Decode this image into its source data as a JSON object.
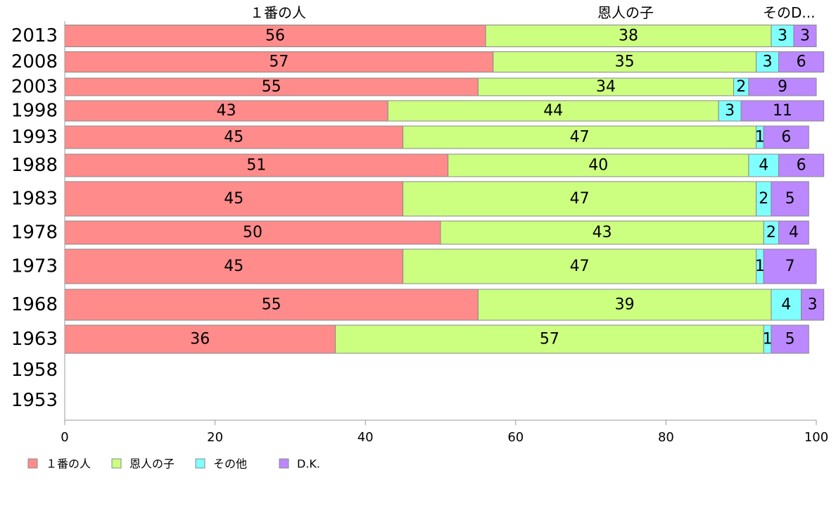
{
  "chart_data": {
    "type": "bar",
    "orientation": "horizontal",
    "stacked": true,
    "categories": [
      "2013",
      "2008",
      "2003",
      "1998",
      "1993",
      "1988",
      "1983",
      "1978",
      "1973",
      "1968",
      "1963",
      "1958",
      "1953"
    ],
    "series": [
      {
        "name": "１番の人",
        "color": "#ff8b8b",
        "values": [
          56,
          57,
          55,
          43,
          45,
          51,
          45,
          50,
          45,
          55,
          36,
          null,
          null
        ]
      },
      {
        "name": "恩人の子",
        "color": "#ccff80",
        "values": [
          38,
          35,
          34,
          44,
          47,
          40,
          47,
          43,
          47,
          39,
          57,
          null,
          null
        ]
      },
      {
        "name": "その他",
        "color": "#80ffff",
        "values": [
          3,
          3,
          2,
          3,
          1,
          4,
          2,
          2,
          1,
          4,
          1,
          null,
          null
        ]
      },
      {
        "name": "D.K.",
        "color": "#bb88ff",
        "values": [
          3,
          6,
          9,
          11,
          6,
          6,
          5,
          4,
          7,
          3,
          5,
          null,
          null
        ]
      }
    ],
    "shown_value_labels": [
      [
        "56",
        "38",
        "3",
        "3"
      ],
      [
        "57",
        "35",
        "3",
        "6"
      ],
      [
        "55",
        "34",
        "2",
        "9"
      ],
      [
        "43",
        "44",
        "3",
        "11"
      ],
      [
        "45",
        "47",
        "1",
        "6"
      ],
      [
        "51",
        "40",
        "4",
        "6"
      ],
      [
        "45",
        "47",
        "2",
        "5"
      ],
      [
        "50",
        "43",
        "2",
        "4"
      ],
      [
        "45",
        "47",
        "1",
        "7"
      ],
      [
        "55",
        "39",
        "4",
        "3"
      ],
      [
        "36",
        "57",
        "1",
        "5"
      ],
      [],
      []
    ],
    "top_labels": [
      "１番の人",
      "恩人の子",
      "そのD..."
    ],
    "xticks": [
      "0",
      "20",
      "40",
      "60",
      "80",
      "100"
    ],
    "xlim": [
      0,
      100
    ],
    "legend": {
      "placement": "bottom-left",
      "entries": [
        "１番の人",
        "恩人の子",
        "その他",
        "D.K."
      ]
    },
    "grid": false,
    "axis_color": "#999999"
  }
}
